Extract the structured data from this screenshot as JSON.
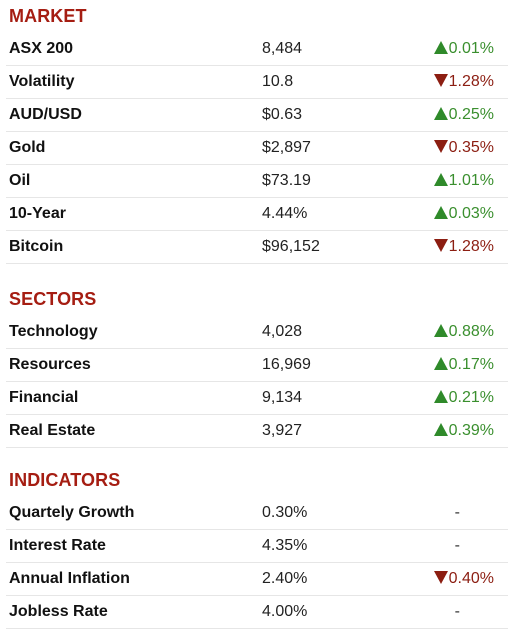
{
  "sections": [
    {
      "title": "MARKET",
      "rows": [
        {
          "name": "ASX 200",
          "value": "8,484",
          "change": "0.01%",
          "direction": "up"
        },
        {
          "name": "Volatility",
          "value": "10.8",
          "change": "1.28%",
          "direction": "down"
        },
        {
          "name": "AUD/USD",
          "value": "$0.63",
          "change": "0.25%",
          "direction": "up"
        },
        {
          "name": "Gold",
          "value": "$2,897",
          "change": "0.35%",
          "direction": "down"
        },
        {
          "name": "Oil",
          "value": "$73.19",
          "change": "1.01%",
          "direction": "up"
        },
        {
          "name": "10-Year",
          "value": "4.44%",
          "change": "0.03%",
          "direction": "up"
        },
        {
          "name": "Bitcoin",
          "value": "$96,152",
          "change": "1.28%",
          "direction": "down"
        }
      ]
    },
    {
      "title": "SECTORS",
      "rows": [
        {
          "name": "Technology",
          "value": "4,028",
          "change": "0.88%",
          "direction": "up"
        },
        {
          "name": "Resources",
          "value": "16,969",
          "change": "0.17%",
          "direction": "up"
        },
        {
          "name": "Financial",
          "value": "9,134",
          "change": "0.21%",
          "direction": "up"
        },
        {
          "name": "Real Estate",
          "value": "3,927",
          "change": "0.39%",
          "direction": "up"
        }
      ]
    },
    {
      "title": "INDICATORS",
      "rows": [
        {
          "name": "Quartely Growth",
          "value": "0.30%",
          "change": "-",
          "direction": "none"
        },
        {
          "name": "Interest Rate",
          "value": "4.35%",
          "change": "-",
          "direction": "none"
        },
        {
          "name": "Annual Inflation",
          "value": "2.40%",
          "change": "0.40%",
          "direction": "down"
        },
        {
          "name": "Jobless Rate",
          "value": "4.00%",
          "change": "-",
          "direction": "none"
        }
      ]
    }
  ],
  "colors": {
    "heading": "#a51d12",
    "up": "#3a8f2e",
    "down": "#8c1e12"
  },
  "icons": {
    "up": "triangle-up-icon",
    "down": "triangle-down-icon"
  }
}
